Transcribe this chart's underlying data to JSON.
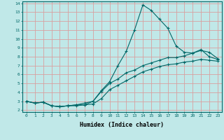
{
  "xlabel": "Humidex (Indice chaleur)",
  "bg_color": "#c0e8e8",
  "grid_color": "#d8a0a0",
  "line_color": "#006868",
  "xlim": [
    -0.5,
    23.5
  ],
  "ylim": [
    1.8,
    14.2
  ],
  "xticks": [
    0,
    1,
    2,
    3,
    4,
    5,
    6,
    7,
    8,
    9,
    10,
    11,
    12,
    13,
    14,
    15,
    16,
    17,
    18,
    19,
    20,
    21,
    22,
    23
  ],
  "yticks": [
    2,
    3,
    4,
    5,
    6,
    7,
    8,
    9,
    10,
    11,
    12,
    13,
    14
  ],
  "line1_x": [
    0,
    1,
    2,
    3,
    4,
    5,
    6,
    7,
    8,
    9,
    10,
    11,
    12,
    13,
    14,
    15,
    16,
    17,
    18,
    19,
    20,
    21,
    22,
    23
  ],
  "line1_y": [
    3.0,
    2.8,
    2.9,
    2.5,
    2.4,
    2.5,
    2.6,
    2.6,
    3.0,
    4.2,
    5.2,
    7.0,
    8.6,
    11.0,
    13.8,
    13.2,
    12.2,
    11.2,
    9.2,
    8.5,
    8.4,
    8.8,
    8.0,
    7.7
  ],
  "line2_x": [
    0,
    1,
    2,
    3,
    4,
    5,
    6,
    7,
    8,
    9,
    10,
    11,
    12,
    13,
    14,
    15,
    16,
    17,
    18,
    19,
    20,
    21,
    22,
    23
  ],
  "line2_y": [
    3.0,
    2.8,
    2.9,
    2.5,
    2.4,
    2.5,
    2.6,
    2.8,
    3.0,
    4.1,
    5.0,
    5.5,
    6.2,
    6.5,
    7.0,
    7.3,
    7.6,
    7.9,
    7.9,
    8.1,
    8.4,
    8.7,
    8.5,
    7.8
  ],
  "line3_x": [
    0,
    1,
    2,
    3,
    4,
    5,
    6,
    7,
    8,
    9,
    10,
    11,
    12,
    13,
    14,
    15,
    16,
    17,
    18,
    19,
    20,
    21,
    22,
    23
  ],
  "line3_y": [
    3.0,
    2.8,
    2.9,
    2.5,
    2.4,
    2.5,
    2.5,
    2.6,
    2.7,
    3.3,
    4.3,
    4.8,
    5.3,
    5.8,
    6.3,
    6.6,
    6.9,
    7.1,
    7.2,
    7.4,
    7.5,
    7.7,
    7.6,
    7.5
  ]
}
